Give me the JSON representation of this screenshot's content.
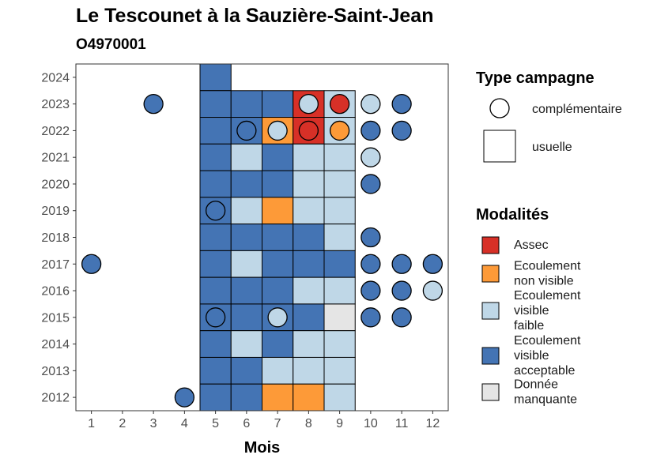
{
  "title": "Le Tescounet à la Sauzière-Saint-Jean",
  "subtitle": "O4970001",
  "legend_campagne": {
    "title": "Type campagne",
    "items": [
      {
        "shape": "circle",
        "label": "complémentaire"
      },
      {
        "shape": "square",
        "label": "usuelle"
      }
    ]
  },
  "legend_modalites": {
    "title": "Modalités",
    "items": [
      {
        "key": "A",
        "lines": [
          "Assec"
        ]
      },
      {
        "key": "NV",
        "lines": [
          "Ecoulement",
          "non visible"
        ]
      },
      {
        "key": "VF",
        "lines": [
          "Ecoulement",
          "visible",
          "faible"
        ]
      },
      {
        "key": "VA",
        "lines": [
          "Ecoulement",
          "visible",
          "acceptable"
        ]
      },
      {
        "key": "DM",
        "lines": [
          "Donnée",
          "manquante"
        ]
      }
    ]
  },
  "chart_data": {
    "type": "heatmap",
    "xlabel": "Mois",
    "ylabel": "",
    "x_ticks": [
      1,
      2,
      3,
      4,
      5,
      6,
      7,
      8,
      9,
      10,
      11,
      12
    ],
    "y_ticks": [
      2012,
      2013,
      2014,
      2015,
      2016,
      2017,
      2018,
      2019,
      2020,
      2021,
      2022,
      2023,
      2024
    ],
    "xlim": [
      0.5,
      12.5
    ],
    "ylim": [
      2011.5,
      2024.5
    ],
    "colors": {
      "A": "#d73027",
      "NV": "#fd9a38",
      "VF": "#bfd7e7",
      "VA": "#4474b4",
      "DM": "#e5e5e5"
    },
    "usuelle": [
      {
        "year": 2024,
        "cells": {
          "5": "VA"
        }
      },
      {
        "year": 2023,
        "cells": {
          "5": "VA",
          "6": "VA",
          "7": "VA",
          "8": "A",
          "9": "VF"
        }
      },
      {
        "year": 2022,
        "cells": {
          "5": "VA",
          "6": "VA",
          "7": "NV",
          "8": "A",
          "9": "VF"
        }
      },
      {
        "year": 2021,
        "cells": {
          "5": "VA",
          "6": "VF",
          "7": "VA",
          "8": "VF",
          "9": "VF"
        }
      },
      {
        "year": 2020,
        "cells": {
          "5": "VA",
          "6": "VA",
          "7": "VA",
          "8": "VF",
          "9": "VF"
        }
      },
      {
        "year": 2019,
        "cells": {
          "5": "VA",
          "6": "VF",
          "7": "NV",
          "8": "VF",
          "9": "VF"
        }
      },
      {
        "year": 2018,
        "cells": {
          "5": "VA",
          "6": "VA",
          "7": "VA",
          "8": "VA",
          "9": "VF"
        }
      },
      {
        "year": 2017,
        "cells": {
          "5": "VA",
          "6": "VF",
          "7": "VA",
          "8": "VA",
          "9": "VA"
        }
      },
      {
        "year": 2016,
        "cells": {
          "5": "VA",
          "6": "VA",
          "7": "VA",
          "8": "VF",
          "9": "VF"
        }
      },
      {
        "year": 2015,
        "cells": {
          "5": "VA",
          "6": "VA",
          "7": "VA",
          "8": "VA",
          "9": "DM"
        }
      },
      {
        "year": 2014,
        "cells": {
          "5": "VA",
          "6": "VF",
          "7": "VA",
          "8": "VF",
          "9": "VF"
        }
      },
      {
        "year": 2013,
        "cells": {
          "5": "VA",
          "6": "VA",
          "7": "VF",
          "8": "VF",
          "9": "VF"
        }
      },
      {
        "year": 2012,
        "cells": {
          "5": "VA",
          "6": "VA",
          "7": "NV",
          "8": "NV",
          "9": "VF"
        }
      }
    ],
    "complementaire": [
      {
        "year": 2023,
        "month": 3,
        "mod": "VA"
      },
      {
        "year": 2023,
        "month": 8,
        "mod": "VF"
      },
      {
        "year": 2023,
        "month": 9,
        "mod": "A"
      },
      {
        "year": 2023,
        "month": 10,
        "mod": "VF"
      },
      {
        "year": 2023,
        "month": 11,
        "mod": "VA"
      },
      {
        "year": 2022,
        "month": 6,
        "mod": "VA"
      },
      {
        "year": 2022,
        "month": 7,
        "mod": "VF"
      },
      {
        "year": 2022,
        "month": 8,
        "mod": "A"
      },
      {
        "year": 2022,
        "month": 9,
        "mod": "NV"
      },
      {
        "year": 2022,
        "month": 10,
        "mod": "VA"
      },
      {
        "year": 2022,
        "month": 11,
        "mod": "VA"
      },
      {
        "year": 2021,
        "month": 10,
        "mod": "VF"
      },
      {
        "year": 2020,
        "month": 10,
        "mod": "VA"
      },
      {
        "year": 2019,
        "month": 5,
        "mod": "VA"
      },
      {
        "year": 2018,
        "month": 10,
        "mod": "VA"
      },
      {
        "year": 2017,
        "month": 1,
        "mod": "VA"
      },
      {
        "year": 2017,
        "month": 10,
        "mod": "VA"
      },
      {
        "year": 2017,
        "month": 11,
        "mod": "VA"
      },
      {
        "year": 2017,
        "month": 12,
        "mod": "VA"
      },
      {
        "year": 2016,
        "month": 10,
        "mod": "VA"
      },
      {
        "year": 2016,
        "month": 11,
        "mod": "VA"
      },
      {
        "year": 2016,
        "month": 12,
        "mod": "VF"
      },
      {
        "year": 2015,
        "month": 5,
        "mod": "VA"
      },
      {
        "year": 2015,
        "month": 7,
        "mod": "VF"
      },
      {
        "year": 2015,
        "month": 10,
        "mod": "VA"
      },
      {
        "year": 2015,
        "month": 11,
        "mod": "VA"
      },
      {
        "year": 2012,
        "month": 4,
        "mod": "VA"
      }
    ]
  }
}
